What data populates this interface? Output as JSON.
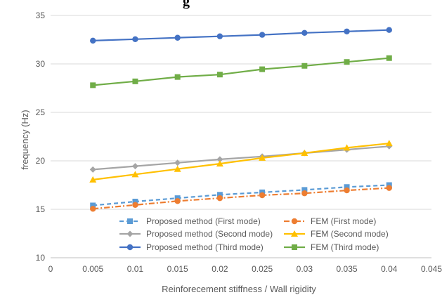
{
  "header_fragment": "g",
  "chart_data": {
    "type": "line",
    "title": "",
    "xlabel": "Reinforecement stiffness / Wall rigidity",
    "ylabel": "frequency (Hz)",
    "xlim": [
      0,
      0.045
    ],
    "ylim": [
      10,
      35
    ],
    "x_ticks": [
      0,
      0.005,
      0.01,
      0.015,
      0.02,
      0.025,
      0.03,
      0.035,
      0.04,
      0.045
    ],
    "x_tick_labels": [
      "0",
      "0.005",
      "0.01",
      "0.015",
      "0.02",
      "0.025",
      "0.03",
      "0.035",
      "0.04",
      "0.045"
    ],
    "y_ticks": [
      10,
      15,
      20,
      25,
      30,
      35
    ],
    "y_tick_labels": [
      "10",
      "15",
      "20",
      "25",
      "30",
      "35"
    ],
    "grid": "horizontal",
    "legend_position": "bottom-inside",
    "x": [
      0.005,
      0.01,
      0.015,
      0.02,
      0.025,
      0.03,
      0.035,
      0.04
    ],
    "series": [
      {
        "name": "Proposed method (First mode)",
        "values": [
          15.4,
          15.8,
          16.15,
          16.5,
          16.75,
          17.0,
          17.3,
          17.5
        ],
        "color": "#5B9BD5",
        "marker": "square",
        "dash": "6,4"
      },
      {
        "name": "FEM (First mode)",
        "values": [
          15.05,
          15.45,
          15.85,
          16.15,
          16.45,
          16.65,
          16.95,
          17.2
        ],
        "color": "#ED7D31",
        "marker": "circle",
        "dash": "8,3,2,3"
      },
      {
        "name": "Proposed method (Second mode)",
        "values": [
          19.1,
          19.45,
          19.8,
          20.15,
          20.45,
          20.8,
          21.15,
          21.5
        ],
        "color": "#A5A5A5",
        "marker": "diamond",
        "dash": ""
      },
      {
        "name": "FEM (Second mode)",
        "values": [
          18.05,
          18.6,
          19.15,
          19.7,
          20.3,
          20.8,
          21.35,
          21.8
        ],
        "color": "#FFC000",
        "marker": "triangle",
        "dash": ""
      },
      {
        "name": "Proposed method (Third mode)",
        "values": [
          32.4,
          32.55,
          32.7,
          32.85,
          33.0,
          33.2,
          33.35,
          33.5
        ],
        "color": "#4472C4",
        "marker": "circle",
        "dash": ""
      },
      {
        "name": "FEM (Third mode)",
        "values": [
          27.8,
          28.2,
          28.65,
          28.9,
          29.45,
          29.8,
          30.2,
          30.6
        ],
        "color": "#70AD47",
        "marker": "square",
        "dash": ""
      }
    ]
  }
}
